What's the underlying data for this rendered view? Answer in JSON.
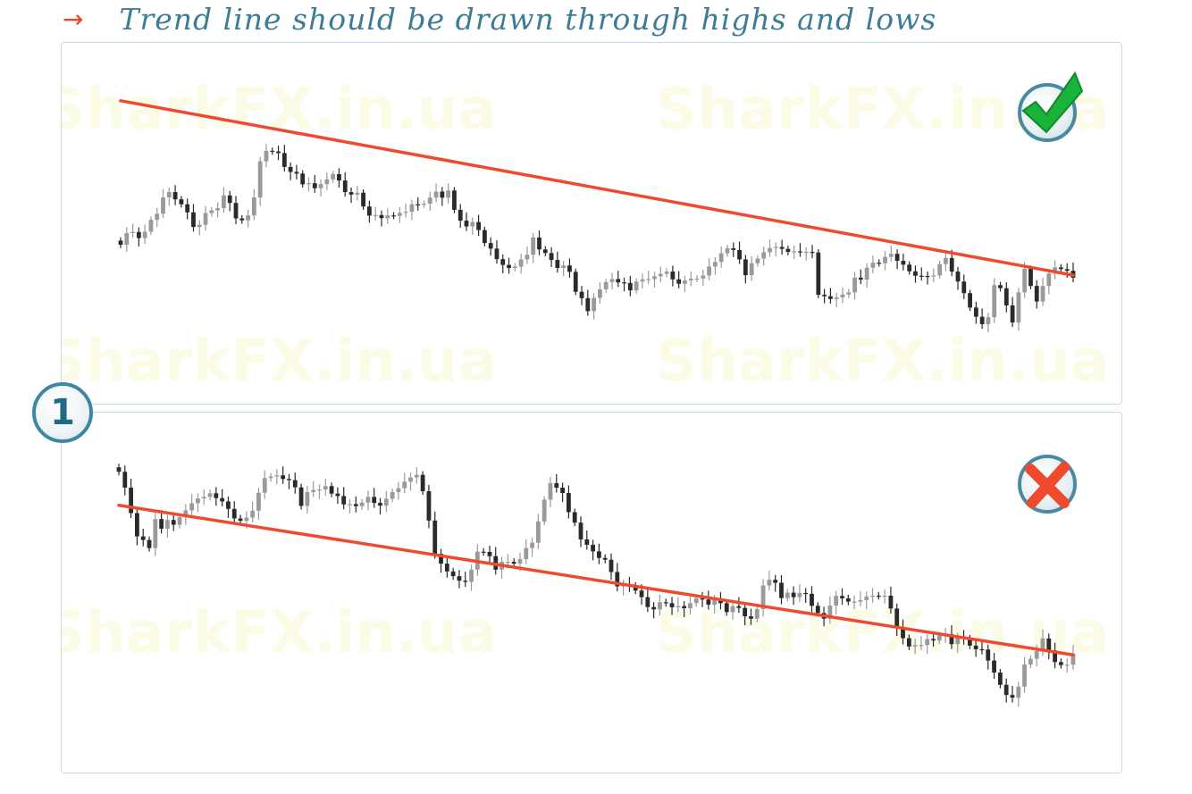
{
  "heading": {
    "arrow_icon": "right-arrow-icon",
    "text": "Trend line should be drawn through highs and lows"
  },
  "badge_number": "1",
  "watermark_text": "SharkFX.in.ua",
  "colors": {
    "trendline": "#f04a2e",
    "bull_candle": "#9a9a9a",
    "bear_candle": "#2a2a2a",
    "accent": "#3d7d94"
  },
  "chart_data": [
    {
      "type": "candlestick",
      "name": "correct",
      "status_icon": "check-icon",
      "ylim": [
        0,
        100
      ],
      "trendline": {
        "x": [
          0,
          197
        ],
        "y": [
          92,
          29
        ]
      },
      "closes": [
        40.0,
        44.2,
        44.6,
        42.4,
        44.7,
        49.0,
        51.2,
        57.1,
        59.0,
        56.4,
        54.6,
        51.7,
        46.4,
        47.2,
        51.4,
        52.4,
        53.2,
        57.8,
        55.1,
        49.5,
        48.8,
        50.6,
        57.1,
        70.1,
        73.9,
        73.7,
        73.1,
        68.1,
        66.3,
        65.7,
        61.8,
        62.2,
        60.4,
        61.9,
        63.6,
        65.5,
        63.2,
        59.0,
        58.1,
        58.8,
        53.8,
        50.5,
        50.7,
        49.6,
        50.6,
        50.4,
        51.5,
        51.9,
        54.6,
        54.4,
        54.8,
        57.0,
        59.2,
        57.0,
        59.6,
        52.6,
        48.7,
        46.6,
        48.2,
        45.3,
        40.6,
        38.6,
        34.8,
        32.7,
        31.6,
        32.1,
        34.7,
        36.4,
        42.6,
        38.3,
        37.0,
        34.5,
        31.6,
        32.5,
        30.2,
        23.0,
        20.7,
        16.0,
        20.8,
        23.9,
        26.5,
        27.6,
        26.4,
        26.2,
        23.5,
        26.7,
        27.5,
        27.6,
        28.6,
        29.5,
        30.3,
        27.5,
        25.9,
        27.1,
        27.7,
        27.8,
        28.9,
        32.1,
        33.8,
        36.9,
        38.7,
        38.1,
        34.7,
        29.0,
        33.3,
        35.0,
        37.3,
        38.8,
        39.2,
        38.5,
        37.4,
        37.6,
        37.3,
        37.4,
        37.2,
        21.9,
        21.4,
        20.4,
        21.0,
        22.0,
        22.8,
        28.1,
        27.4,
        31.7,
        33.5,
        33.3,
        35.6,
        36.7,
        34.2,
        32.8,
        30.4,
        28.8,
        28.7,
        28.6,
        28.9,
        33.0,
        35.2,
        30.3,
        26.7,
        22.5,
        17.3,
        14.0,
        11.3,
        13.8,
        25.4,
        24.3,
        18.1,
        11.9,
        22.8,
        31.3,
        25.1,
        19.5,
        25.1,
        29.6,
        31.8,
        31.2,
        30.6,
        28.1
      ]
    },
    {
      "type": "candlestick",
      "name": "incorrect",
      "status_icon": "cross-icon",
      "ylim": [
        0,
        100
      ],
      "trendline": {
        "x": [
          0,
          197
        ],
        "y": [
          75,
          25
        ]
      },
      "closes": [
        86.2,
        80.9,
        72.4,
        64.6,
        63.4,
        60.7,
        70.4,
        67.2,
        70.1,
        68.5,
        71.0,
        73.3,
        75.7,
        77.3,
        77.8,
        79.0,
        77.4,
        76.3,
        73.8,
        70.6,
        69.8,
        70.9,
        73.2,
        79.2,
        84.1,
        84.6,
        85.0,
        83.8,
        83.4,
        81.0,
        74.8,
        79.4,
        80.1,
        80.3,
        81.4,
        78.9,
        78.1,
        75.3,
        75.4,
        74.7,
        75.9,
        77.8,
        75.8,
        74.9,
        77.2,
        79.4,
        80.7,
        82.9,
        84.3,
        85.2,
        79.7,
        69.9,
        58.8,
        55.5,
        52.9,
        51.3,
        49.8,
        49.4,
        53.5,
        59.5,
        59.4,
        58.0,
        53.5,
        56.1,
        56.1,
        55.5,
        57.0,
        60.7,
        62.5,
        69.6,
        76.9,
        82.4,
        80.9,
        79.1,
        72.7,
        69.2,
        63.6,
        61.8,
        59.6,
        57.4,
        56.8,
        52.7,
        47.9,
        48.5,
        48.1,
        46.5,
        44.3,
        41.0,
        40.2,
        42.6,
        42.3,
        40.9,
        41.3,
        40.6,
        42.3,
        43.9,
        43.5,
        41.8,
        43.4,
        42.3,
        39.3,
        41.3,
        40.7,
        37.9,
        37.1,
        40.3,
        48.2,
        50.1,
        49.1,
        44.0,
        45.8,
        44.3,
        45.7,
        45.4,
        41.4,
        39.0,
        37.1,
        41.5,
        44.7,
        43.9,
        42.8,
        42.8,
        43.3,
        44.5,
        44.8,
        44.7,
        44.8,
        40.5,
        34.3,
        30.6,
        27.8,
        28.3,
        28.3,
        30.3,
        29.8,
        31.5,
        31.9,
        28.6,
        30.8,
        30.5,
        28.1,
        26.9,
        26.8,
        23.1,
        19.1,
        15.0,
        11.6,
        10.7,
        14.4,
        21.8,
        23.7,
        26.3,
        30.5,
        26.5,
        22.6,
        21.6,
        21.7,
        25.3
      ]
    }
  ]
}
